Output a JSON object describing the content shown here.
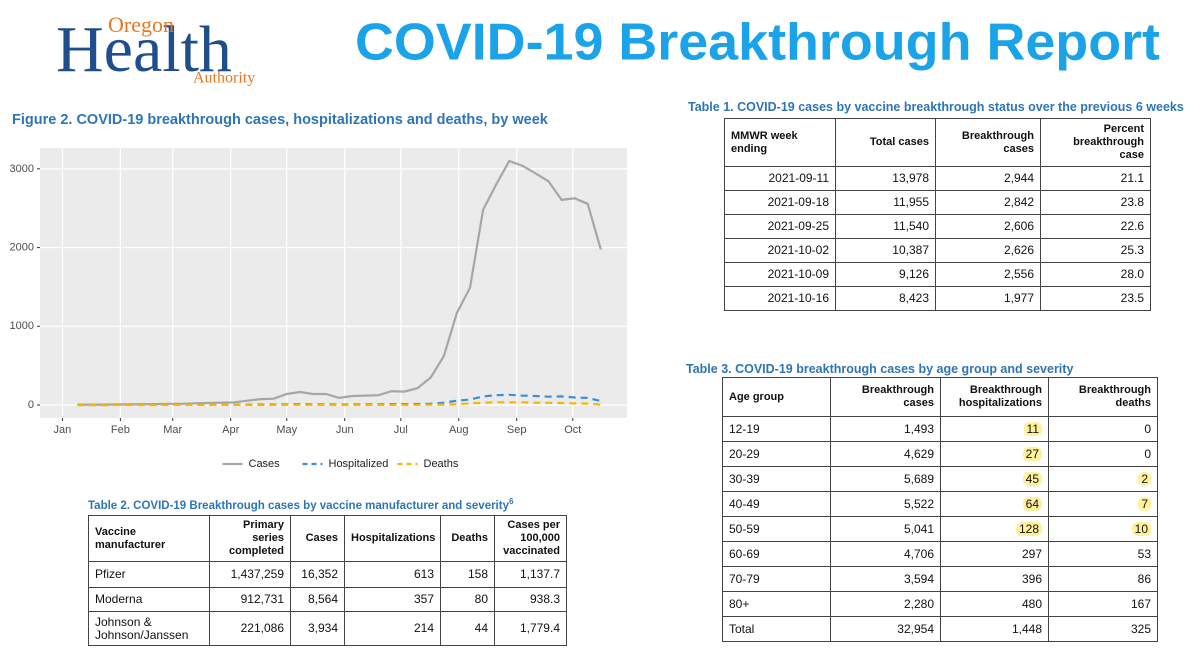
{
  "header": {
    "logo": {
      "top": "Oregon",
      "main": "Health",
      "bottom": "Authority"
    },
    "title": "COVID-19 Breakthrough Report"
  },
  "chart_data": {
    "type": "line",
    "title": "Figure 2. COVID-19 breakthrough cases, hospitalizations and deaths, by week",
    "x": [
      8,
      15,
      22,
      29,
      36,
      43,
      50,
      57,
      64,
      71,
      78,
      85,
      92,
      99,
      106,
      113,
      120,
      127,
      134,
      141,
      148,
      155,
      162,
      169,
      176,
      183,
      190,
      197,
      204,
      211,
      218,
      225,
      232,
      239,
      246,
      253,
      260,
      267,
      274,
      281,
      288
    ],
    "xlim": [
      -12,
      302
    ],
    "xticks": [
      {
        "value": 0,
        "label": "Jan"
      },
      {
        "value": 31,
        "label": "Feb"
      },
      {
        "value": 59,
        "label": "Mar"
      },
      {
        "value": 90,
        "label": "Apr"
      },
      {
        "value": 120,
        "label": "May"
      },
      {
        "value": 151,
        "label": "Jun"
      },
      {
        "value": 181,
        "label": "Jul"
      },
      {
        "value": 212,
        "label": "Aug"
      },
      {
        "value": 243,
        "label": "Sep"
      },
      {
        "value": 273,
        "label": "Oct"
      }
    ],
    "ylim": [
      -165,
      3265
    ],
    "yticks": [
      0,
      1000,
      2000,
      3000
    ],
    "grid": true,
    "legend": "bottom",
    "series": [
      {
        "name": "Cases",
        "color": "#a6a6a6",
        "dash": "solid",
        "values": [
          5,
          5,
          5,
          8,
          8,
          10,
          12,
          15,
          15,
          20,
          25,
          30,
          35,
          55,
          75,
          80,
          140,
          165,
          140,
          140,
          90,
          115,
          120,
          125,
          175,
          170,
          215,
          350,
          620,
          1170,
          1490,
          2480,
          2800,
          3100,
          3040,
          2944,
          2842,
          2606,
          2626,
          2556,
          1977
        ]
      },
      {
        "name": "Hospitalized",
        "color": "#3d8fd6",
        "dash": "dashed",
        "values": [
          0,
          0,
          0,
          1,
          1,
          1,
          1,
          2,
          2,
          2,
          3,
          3,
          4,
          5,
          6,
          7,
          9,
          10,
          9,
          9,
          7,
          8,
          8,
          9,
          12,
          12,
          13,
          17,
          30,
          55,
          70,
          110,
          125,
          130,
          120,
          115,
          105,
          110,
          95,
          90,
          50
        ]
      },
      {
        "name": "Deaths",
        "color": "#f5b800",
        "dash": "dashed",
        "values": [
          0,
          0,
          0,
          0,
          0,
          0,
          0,
          1,
          1,
          1,
          1,
          1,
          1,
          1,
          2,
          2,
          3,
          3,
          3,
          2,
          2,
          2,
          2,
          2,
          2,
          3,
          3,
          4,
          5,
          10,
          20,
          30,
          35,
          35,
          35,
          30,
          28,
          25,
          20,
          18,
          5
        ]
      }
    ]
  },
  "table1": {
    "title": "Table 1. COVID-19 cases by vaccine breakthrough status over the previous 6 weeks",
    "header": [
      "MMWR week ending",
      "Total cases",
      "Breakthrough cases",
      "Percent breakthrough case"
    ],
    "rows": [
      [
        "2021-09-11",
        "13,978",
        "2,944",
        "21.1"
      ],
      [
        "2021-09-18",
        "11,955",
        "2,842",
        "23.8"
      ],
      [
        "2021-09-25",
        "11,540",
        "2,606",
        "22.6"
      ],
      [
        "2021-10-02",
        "10,387",
        "2,626",
        "25.3"
      ],
      [
        "2021-10-09",
        "9,126",
        "2,556",
        "28.0"
      ],
      [
        "2021-10-16",
        "8,423",
        "1,977",
        "23.5"
      ]
    ]
  },
  "table2": {
    "title": "Table 2. COVID-19 Breakthrough cases by vaccine manufacturer and severity",
    "title_note": "6",
    "header": [
      "Vaccine manufacturer",
      "Primary series completed",
      "Cases",
      "Hospitalizations",
      "Deaths",
      "Cases per 100,000 vaccinated"
    ],
    "rows": [
      [
        "Pfizer",
        "1,437,259",
        "16,352",
        "613",
        "158",
        "1,137.7"
      ],
      [
        "Moderna",
        "912,731",
        "8,564",
        "357",
        "80",
        "938.3"
      ],
      [
        "Johnson & Johnson/Janssen",
        "221,086",
        "3,934",
        "214",
        "44",
        "1,779.4"
      ]
    ]
  },
  "table3": {
    "title": "Table 3. COVID-19 breakthrough cases by age group and severity",
    "header": [
      "Age group",
      "Breakthrough cases",
      "Breakthrough hospitalizations",
      "Breakthrough deaths"
    ],
    "rows": [
      [
        "12-19",
        "1,493",
        "11",
        "0"
      ],
      [
        "20-29",
        "4,629",
        "27",
        "0"
      ],
      [
        "30-39",
        "5,689",
        "45",
        "2"
      ],
      [
        "40-49",
        "5,522",
        "64",
        "7"
      ],
      [
        "50-59",
        "5,041",
        "128",
        "10"
      ],
      [
        "60-69",
        "4,706",
        "297",
        "53"
      ],
      [
        "70-79",
        "3,594",
        "396",
        "86"
      ],
      [
        "80+",
        "2,280",
        "480",
        "167"
      ],
      [
        "Total",
        "32,954",
        "1,448",
        "325"
      ]
    ],
    "highlight_color": "#fff19a",
    "highlighted_cells": [
      [
        0,
        2
      ],
      [
        1,
        2
      ],
      [
        2,
        2
      ],
      [
        2,
        3
      ],
      [
        3,
        2
      ],
      [
        3,
        3
      ],
      [
        4,
        2
      ],
      [
        4,
        3
      ]
    ]
  }
}
